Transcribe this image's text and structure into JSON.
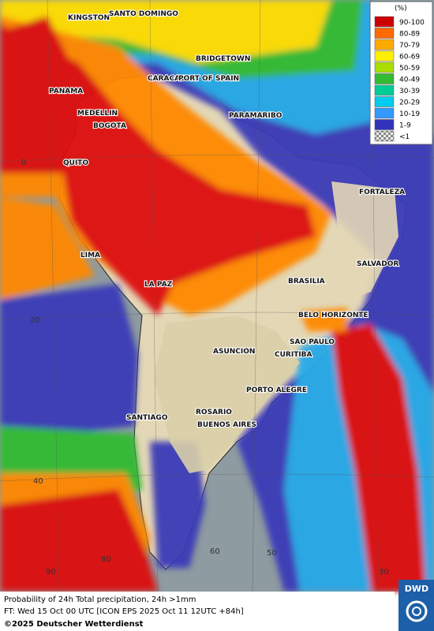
{
  "legend": {
    "title": "(%)",
    "items": [
      {
        "label": "90-100",
        "color": "#cc0000"
      },
      {
        "label": "80-89",
        "color": "#ff6a00"
      },
      {
        "label": "70-79",
        "color": "#ffaa00"
      },
      {
        "label": "60-69",
        "color": "#ffee00"
      },
      {
        "label": "50-59",
        "color": "#aadd00"
      },
      {
        "label": "40-49",
        "color": "#33bb33"
      },
      {
        "label": "30-39",
        "color": "#00cc99"
      },
      {
        "label": "20-29",
        "color": "#00ccee"
      },
      {
        "label": "10-19",
        "color": "#3399ff"
      },
      {
        "label": "1-9",
        "color": "#3333bb"
      },
      {
        "label": "<1",
        "color": "checker"
      }
    ]
  },
  "cities": [
    "KINGSTON",
    "SANTO DOMINGO",
    "BRIDGETOWN",
    "CARACAS",
    "PORT OF SPAIN",
    "PANAMA",
    "MEDELLIN",
    "BOGOTA",
    "PARAMARIBO",
    "QUITO",
    "FORTALEZA",
    "LIMA",
    "SALVADOR",
    "BRASILIA",
    "LA PAZ",
    "BELO HORIZONTE",
    "SAO PAULO",
    "ASUNCION",
    "CURITIBA",
    "PORTO ALEGRE",
    "ROSARIO",
    "SANTIAGO",
    "BUENOS AIRES"
  ],
  "graticule_labels": [
    "0",
    "20",
    "40",
    "90",
    "80",
    "60",
    "50",
    "30"
  ],
  "footer": {
    "line1": "Probability of 24h Total precipitation, 24h >1mm",
    "line2": "FT: Wed 15 Oct 00 UTC [ICON EPS 2025 Oct 11 12UTC +84h]",
    "copyright": "©2025 Deutscher Wetterdienst",
    "logo": "DWD"
  }
}
